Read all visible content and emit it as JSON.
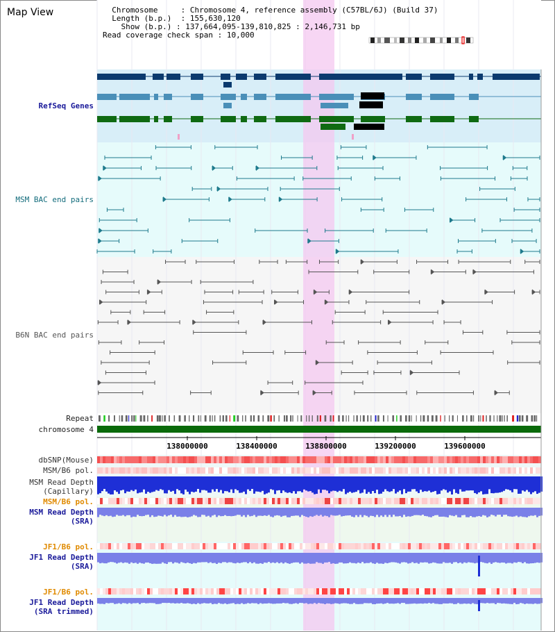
{
  "view_title": "Map View",
  "info": {
    "chromosome_label": "Chromosome",
    "chromosome_value": "Chromosome 4, reference assembly (C57BL/6J) (Build 37)",
    "length_label": "Length (b.p.)",
    "length_value": "155,630,120",
    "show_label": "Show (b.p.)",
    "show_value": "137,664,095-139,810,825 : 2,146,731 bp",
    "coverage_label": "Read coverage check span",
    "coverage_value": "10,000"
  },
  "tracks": {
    "refseq": "RefSeq Genes",
    "msm_bac": "MSM BAC end pairs",
    "b6n_bac": "B6N BAC end pairs",
    "repeat": "Repeat",
    "chromosome": "chromosome 4",
    "dbsnp": "dbSNP(Mouse)",
    "msm_b6_pol1": "MSM/B6 pol.",
    "msm_read_depth_cap_1": "MSM Read Depth",
    "msm_read_depth_cap_2": "(Capillary)",
    "msm_b6_pol2": "MSM/B6 pol.",
    "msm_read_depth_sra_1": "MSM Read Depth",
    "msm_read_depth_sra_2": "(SRA)",
    "jf1_b6_pol1": "JF1/B6 pol.",
    "jf1_read_depth_sra_1": "JF1 Read Depth",
    "jf1_read_depth_sra_2": "(SRA)",
    "jf1_b6_pol2": "JF1/B6 pol.",
    "jf1_read_depth_trim_1": "JF1 Read Depth",
    "jf1_read_depth_trim_2": "(SRA trimmed)"
  },
  "ruler_ticks": [
    "138000000",
    "138400000",
    "138800000",
    "139200000",
    "139600000"
  ],
  "colors": {
    "refseq_bg": "#d8eef8",
    "msm_bg": "#e6fbfb",
    "highlight": "#f4c8f0",
    "refseq_dark": "#0b3a6e",
    "refseq_mid": "#4a8fb8",
    "refseq_green": "#0f6a12",
    "msm_line": "#1e7a8c",
    "b6n_line": "#555555",
    "chrom_bar": "#0a6a0a",
    "snp_red": "#f45050",
    "depth_blue": "#1e2fd6",
    "depth_light": "#7a80e8"
  }
}
